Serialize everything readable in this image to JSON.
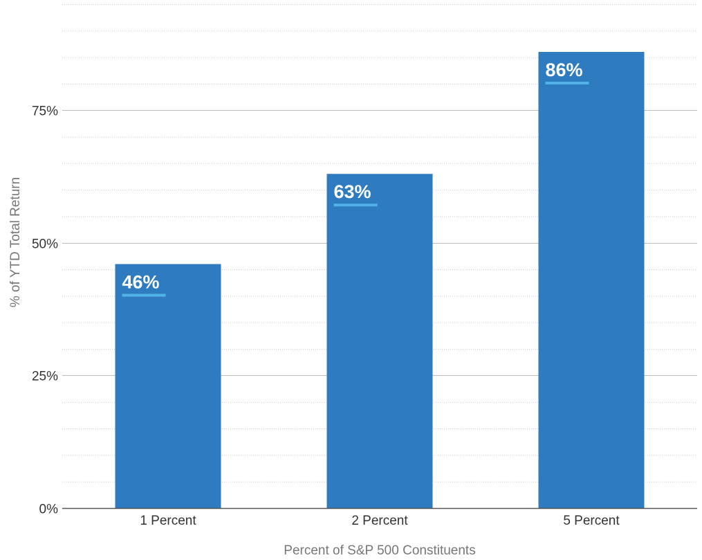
{
  "chart_data": {
    "type": "bar",
    "title": "",
    "xlabel": "Percent of S&P 500 Constituents",
    "ylabel": "% of YTD Total Return",
    "categories": [
      "1 Percent",
      "2 Percent",
      "5 Percent"
    ],
    "values": [
      46,
      63,
      86
    ],
    "data_labels": [
      "46%",
      "63%",
      "86%"
    ],
    "ylim": [
      0,
      95
    ],
    "y_ticks": [
      0,
      25,
      50,
      75
    ],
    "y_tick_labels": [
      "0%",
      "25%",
      "50%",
      "75%"
    ],
    "y_minor_step": 5,
    "grid": true,
    "legend": "none",
    "colors": {
      "bar": "#2e7bbf",
      "label_underline": "#4fb3e8",
      "major_grid": "#bbbbbb",
      "minor_grid": "#cccccc",
      "axis": "#555555"
    }
  }
}
